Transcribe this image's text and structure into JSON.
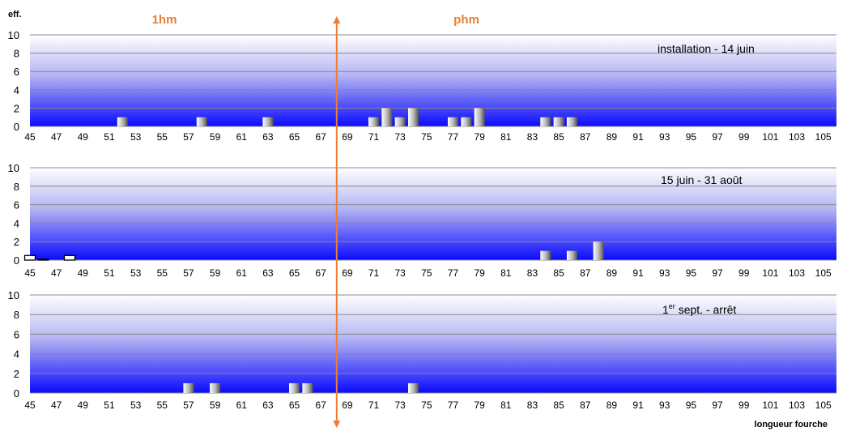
{
  "chart_data": {
    "type": "bar",
    "y_axis_label": "eff.",
    "x_axis_label": "longueur fourche",
    "region_labels": {
      "left": "1hm",
      "right": "phm"
    },
    "divider_x": 68.2,
    "x_range": [
      45,
      106
    ],
    "x_tick_labels": [
      "45",
      "47",
      "49",
      "51",
      "53",
      "55",
      "57",
      "59",
      "61",
      "63",
      "65",
      "67",
      "69",
      "71",
      "73",
      "75",
      "77",
      "79",
      "81",
      "83",
      "85",
      "87",
      "89",
      "91",
      "93",
      "95",
      "97",
      "99",
      "101",
      "103",
      "105"
    ],
    "ylim": [
      0,
      10
    ],
    "y_ticks": [
      "0",
      "2",
      "4",
      "6",
      "8",
      "10"
    ],
    "grid": true,
    "colors": {
      "divider": "#ed7d31",
      "region_label": "#ed7d31",
      "gradient_top": "#ffffff",
      "gradient_bottom": "#0000ff",
      "grid": "#888888"
    },
    "panels": [
      {
        "title": "installation - 14 juin",
        "title_sup": "",
        "series": [
          {
            "name": "phm",
            "style": "gradient",
            "points": [
              [
                52,
                1
              ],
              [
                58,
                1
              ],
              [
                63,
                1
              ],
              [
                71,
                1
              ],
              [
                72,
                2
              ],
              [
                73,
                1
              ],
              [
                74,
                2
              ],
              [
                77,
                1
              ],
              [
                78,
                1
              ],
              [
                79,
                2
              ],
              [
                84,
                1
              ],
              [
                85,
                1
              ],
              [
                86,
                1
              ]
            ]
          }
        ]
      },
      {
        "title": "15 juin - 31 août",
        "title_sup": "",
        "series": [
          {
            "name": "1hm",
            "style": "outline",
            "points": [
              [
                45,
                0.5
              ],
              [
                46,
                0.1
              ],
              [
                48,
                0.5
              ]
            ]
          },
          {
            "name": "phm",
            "style": "gradient",
            "points": [
              [
                84,
                1
              ],
              [
                86,
                1
              ],
              [
                88,
                2
              ]
            ]
          }
        ]
      },
      {
        "title_prefix": "1",
        "title_sup": "er",
        "title": " sept. - arrêt",
        "series": [
          {
            "name": "phm",
            "style": "gradient",
            "points": [
              [
                57,
                1
              ],
              [
                59,
                1
              ],
              [
                65,
                1
              ],
              [
                66,
                1
              ],
              [
                74,
                1
              ]
            ]
          }
        ]
      }
    ]
  }
}
